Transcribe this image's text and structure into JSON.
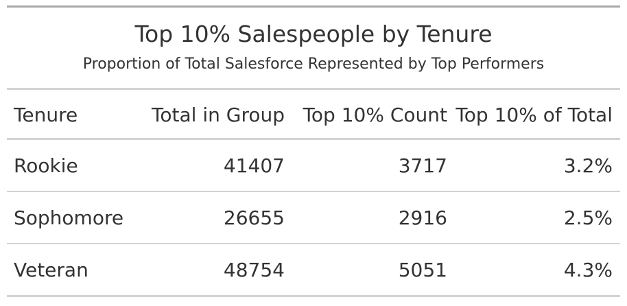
{
  "chart_data": {
    "type": "table",
    "title": "Top 10% Salespeople by Tenure",
    "subtitle": "Proportion of Total Salesforce Represented by Top Performers",
    "columns": [
      "Tenure",
      "Total in Group",
      "Top 10% Count",
      "Top 10% of Total"
    ],
    "rows": [
      {
        "tenure": "Rookie",
        "total": "41407",
        "top_count": "3717",
        "top_pct": "3.2%"
      },
      {
        "tenure": "Sophomore",
        "total": "26655",
        "top_count": "2916",
        "top_pct": "2.5%"
      },
      {
        "tenure": "Veteran",
        "total": "48754",
        "top_count": "5051",
        "top_pct": "4.3%"
      }
    ]
  }
}
